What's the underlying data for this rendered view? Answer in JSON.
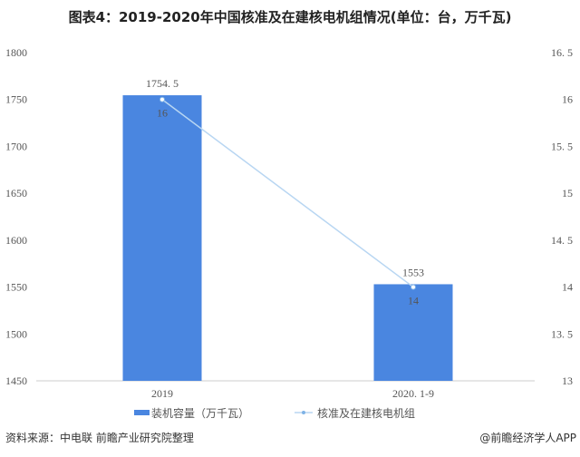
{
  "chart_data": {
    "type": "bar+line",
    "title": "图表4：2019-2020年中国核准及在建核电机组情况(单位：台，万千瓦)",
    "categories": [
      "2019",
      "2020.1-9"
    ],
    "series": [
      {
        "name": "装机容量（万千瓦）",
        "type": "bar",
        "axis": "left",
        "values": [
          1754.5,
          1553
        ],
        "data_labels": [
          "1754.5",
          "1553"
        ]
      },
      {
        "name": "核准及在建核电机组",
        "type": "line",
        "axis": "right",
        "values": [
          16,
          14
        ],
        "data_labels": [
          "16",
          "14"
        ]
      }
    ],
    "y_left": {
      "range": [
        1450,
        1800
      ],
      "ticks": [
        "1450",
        "1500",
        "1550",
        "1600",
        "1650",
        "1700",
        "1750",
        "1800"
      ]
    },
    "y_right": {
      "range": [
        13,
        16.5
      ],
      "ticks": [
        "13",
        "13.5",
        "14",
        "14.5",
        "15",
        "15.5",
        "16",
        "16.5"
      ]
    },
    "grid": false,
    "legend": "bottom",
    "colors": {
      "bar": "#4a86e0",
      "line": "#b8d6f2",
      "point": "#7fb3e6"
    }
  },
  "footer": {
    "source": "资料来源：中电联 前瞻产业研究院整理",
    "credit": "@前瞻经济学人APP"
  }
}
